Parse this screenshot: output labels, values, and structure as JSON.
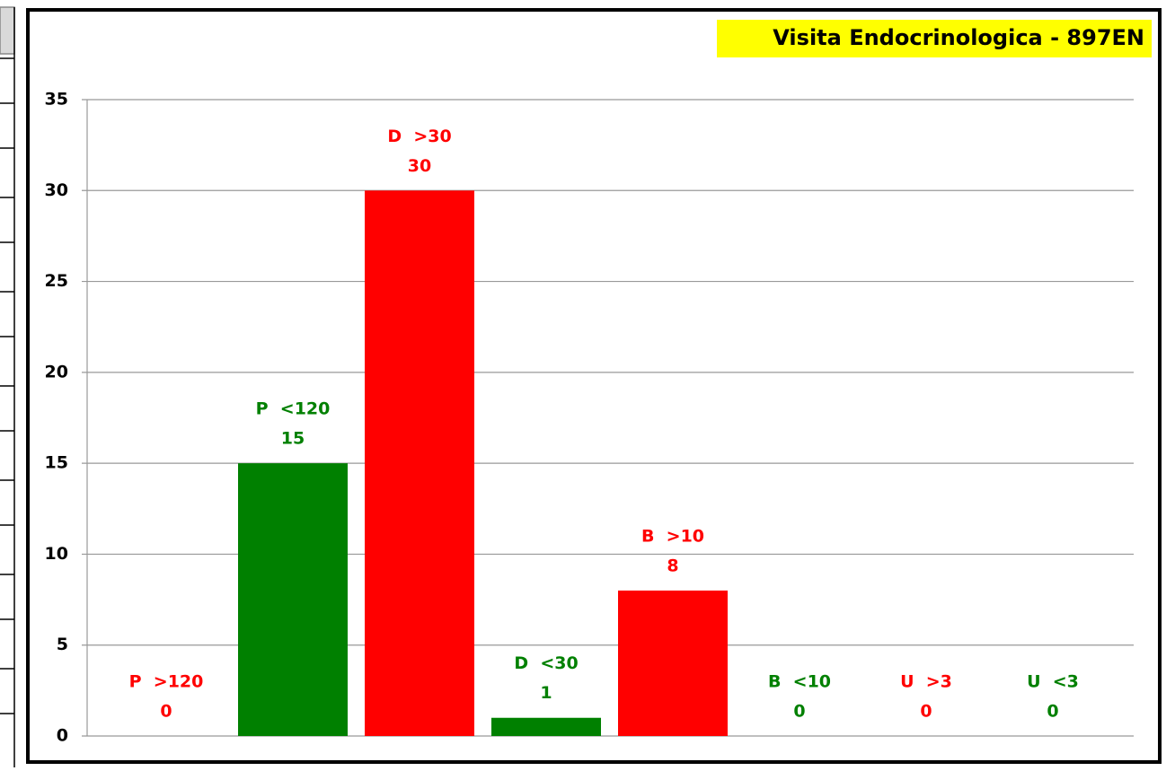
{
  "chart_data": {
    "type": "bar",
    "title": "Visita Endocrinologica - 897EN",
    "categories": [
      "P  >120",
      "P  <120",
      "D  >30",
      "D  <30",
      "B  >10",
      "B  <10",
      "U  >3",
      "U  <3"
    ],
    "values": [
      0,
      15,
      30,
      1,
      8,
      0,
      0,
      0
    ],
    "colors": [
      "#ff0000",
      "#008000",
      "#ff0000",
      "#008000",
      "#ff0000",
      "#008000",
      "#ff0000",
      "#008000"
    ],
    "ylim": [
      0,
      35
    ],
    "yticks": [
      0,
      5,
      10,
      15,
      20,
      25,
      30,
      35
    ],
    "grid": true
  }
}
